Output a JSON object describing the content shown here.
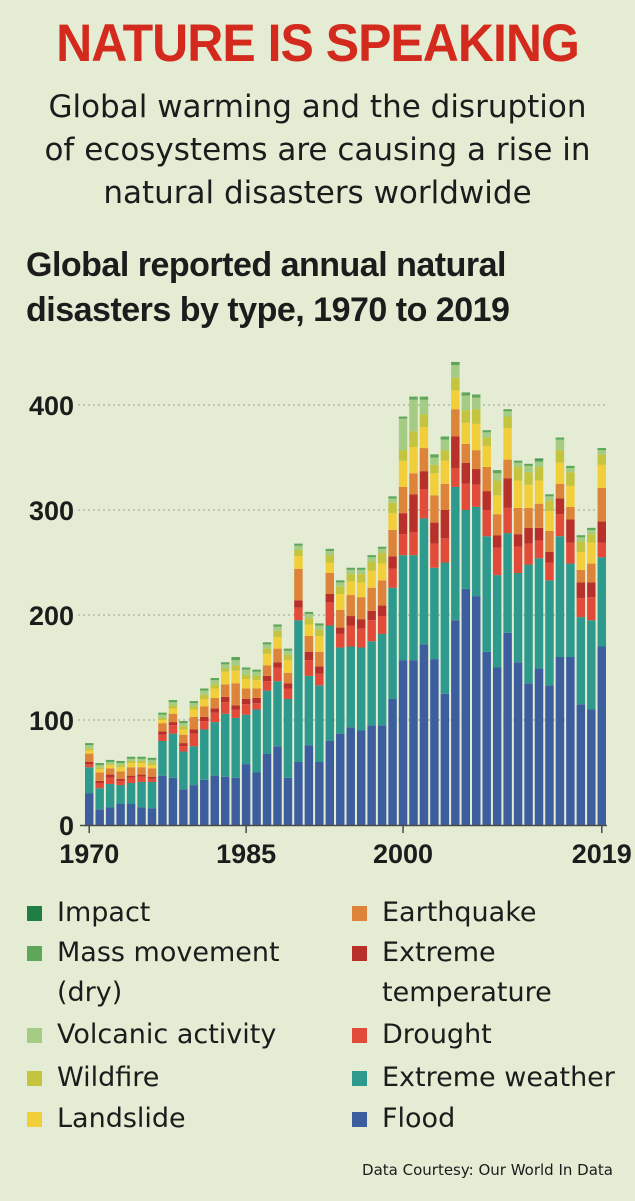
{
  "headline": "NATURE IS SPEAKING",
  "subtitle_lines": [
    "Global warming and the disruption",
    "of ecosystems are causing a rise in",
    "natural disasters worldwide"
  ],
  "credit": "Data Courtesy: Our World In Data",
  "chart_data": {
    "type": "bar",
    "stacked": true,
    "title_lines": [
      "Global reported annual natural",
      "disasters by type, 1970 to 2019"
    ],
    "xlabel": "",
    "ylabel": "",
    "ylim": [
      0,
      440
    ],
    "yticks": [
      0,
      100,
      200,
      300,
      400
    ],
    "xtick_labels": [
      "1970",
      "1985",
      "2000",
      "2019"
    ],
    "grid": "horizontal dotted",
    "legend_position": "below",
    "categories": [
      1970,
      1971,
      1972,
      1973,
      1974,
      1975,
      1976,
      1977,
      1978,
      1979,
      1980,
      1981,
      1982,
      1983,
      1984,
      1985,
      1986,
      1987,
      1988,
      1989,
      1990,
      1991,
      1992,
      1993,
      1994,
      1995,
      1996,
      1997,
      1998,
      1999,
      2000,
      2001,
      2002,
      2003,
      2004,
      2005,
      2006,
      2007,
      2008,
      2009,
      2010,
      2011,
      2012,
      2013,
      2014,
      2015,
      2016,
      2017,
      2018,
      2019
    ],
    "series": [
      {
        "name": "Flood",
        "color": "#3c5e9e",
        "values": [
          30,
          15,
          17,
          20,
          20,
          17,
          16,
          47,
          45,
          34,
          38,
          43,
          47,
          46,
          45,
          58,
          50,
          68,
          75,
          45,
          60,
          76,
          60,
          80,
          87,
          93,
          90,
          95,
          95,
          120,
          157,
          157,
          172,
          158,
          125,
          195,
          225,
          218,
          165,
          150,
          183,
          155,
          135,
          149,
          133,
          160,
          160,
          115,
          110,
          170
        ]
      },
      {
        "name": "Extreme weather",
        "color": "#2e9a8e",
        "values": [
          25,
          20,
          22,
          18,
          20,
          24,
          25,
          33,
          42,
          36,
          37,
          48,
          51,
          60,
          57,
          47,
          60,
          60,
          62,
          75,
          135,
          66,
          73,
          110,
          82,
          77,
          79,
          80,
          87,
          106,
          100,
          100,
          120,
          87,
          125,
          127,
          75,
          85,
          110,
          88,
          95,
          85,
          113,
          105,
          100,
          115,
          89,
          83,
          85,
          85
        ]
      },
      {
        "name": "Drought",
        "color": "#e24a3a",
        "values": [
          3,
          5,
          6,
          4,
          5,
          5,
          3,
          6,
          8,
          5,
          12,
          8,
          9,
          11,
          8,
          10,
          6,
          9,
          13,
          10,
          12,
          15,
          11,
          22,
          13,
          20,
          18,
          20,
          17,
          18,
          20,
          22,
          28,
          23,
          23,
          18,
          25,
          21,
          25,
          26,
          24,
          25,
          20,
          17,
          17,
          21,
          20,
          18,
          22,
          14
        ]
      },
      {
        "name": "Extreme temperature",
        "color": "#b9302a",
        "values": [
          2,
          2,
          3,
          2,
          2,
          2,
          2,
          3,
          3,
          3,
          4,
          4,
          4,
          5,
          4,
          5,
          5,
          5,
          5,
          5,
          7,
          8,
          7,
          8,
          6,
          9,
          9,
          9,
          10,
          12,
          20,
          36,
          17,
          20,
          27,
          30,
          20,
          15,
          18,
          12,
          28,
          12,
          15,
          12,
          10,
          15,
          22,
          15,
          14,
          20
        ]
      },
      {
        "name": "Earthquake",
        "color": "#de843a",
        "values": [
          8,
          8,
          6,
          7,
          8,
          7,
          8,
          8,
          8,
          8,
          12,
          10,
          10,
          12,
          21,
          10,
          9,
          10,
          13,
          10,
          30,
          15,
          14,
          20,
          17,
          20,
          21,
          22,
          24,
          25,
          25,
          20,
          22,
          26,
          25,
          26,
          18,
          18,
          23,
          20,
          18,
          25,
          19,
          23,
          20,
          14,
          12,
          12,
          18,
          32
        ]
      },
      {
        "name": "Landslide",
        "color": "#f2cf3a",
        "values": [
          3,
          3,
          3,
          4,
          4,
          4,
          3,
          3,
          5,
          5,
          7,
          7,
          9,
          12,
          12,
          9,
          8,
          11,
          11,
          12,
          12,
          11,
          15,
          10,
          15,
          13,
          14,
          16,
          16,
          16,
          25,
          25,
          20,
          21,
          22,
          18,
          20,
          25,
          20,
          18,
          30,
          26,
          22,
          22,
          19,
          20,
          20,
          17,
          20,
          22
        ]
      },
      {
        "name": "Wildfire",
        "color": "#c4c43e",
        "values": [
          2,
          2,
          1,
          2,
          2,
          2,
          2,
          2,
          3,
          3,
          3,
          4,
          4,
          3,
          5,
          4,
          4,
          5,
          6,
          5,
          6,
          6,
          6,
          7,
          7,
          7,
          8,
          9,
          10,
          10,
          10,
          15,
          12,
          8,
          10,
          12,
          12,
          14,
          8,
          14,
          11,
          13,
          12,
          13,
          10,
          12,
          13,
          10,
          8,
          10
        ]
      },
      {
        "name": "Volcanic activity",
        "color": "#a4cc84",
        "values": [
          3,
          2,
          2,
          2,
          2,
          2,
          3,
          3,
          3,
          3,
          3,
          4,
          4,
          4,
          5,
          5,
          4,
          4,
          4,
          4,
          4,
          4,
          4,
          4,
          4,
          4,
          4,
          4,
          4,
          4,
          30,
          30,
          14,
          7,
          10,
          12,
          14,
          11,
          5,
          7,
          5,
          4,
          6,
          5,
          4,
          10,
          4,
          4,
          4,
          4
        ]
      },
      {
        "name": "Mass movement (dry)",
        "color": "#5ea65a",
        "values": [
          2,
          2,
          2,
          2,
          2,
          2,
          2,
          2,
          2,
          2,
          2,
          2,
          2,
          2,
          3,
          2,
          2,
          2,
          2,
          2,
          2,
          2,
          2,
          2,
          2,
          2,
          2,
          2,
          2,
          2,
          2,
          3,
          3,
          3,
          3,
          3,
          3,
          3,
          2,
          3,
          2,
          2,
          2,
          2,
          2,
          2,
          2,
          2,
          2,
          2
        ]
      },
      {
        "name": "Impact",
        "color": "#1e7e44",
        "values": [
          0,
          0,
          0,
          0,
          0,
          0,
          0,
          0,
          0,
          0,
          0,
          0,
          0,
          0,
          0,
          0,
          0,
          0,
          0,
          0,
          0,
          0,
          0,
          0,
          0,
          0,
          0,
          0,
          0,
          0,
          0,
          0,
          0,
          0,
          0,
          0,
          0,
          0,
          0,
          0,
          0,
          0,
          0,
          1,
          0,
          0,
          0,
          0,
          0,
          0
        ]
      }
    ]
  }
}
